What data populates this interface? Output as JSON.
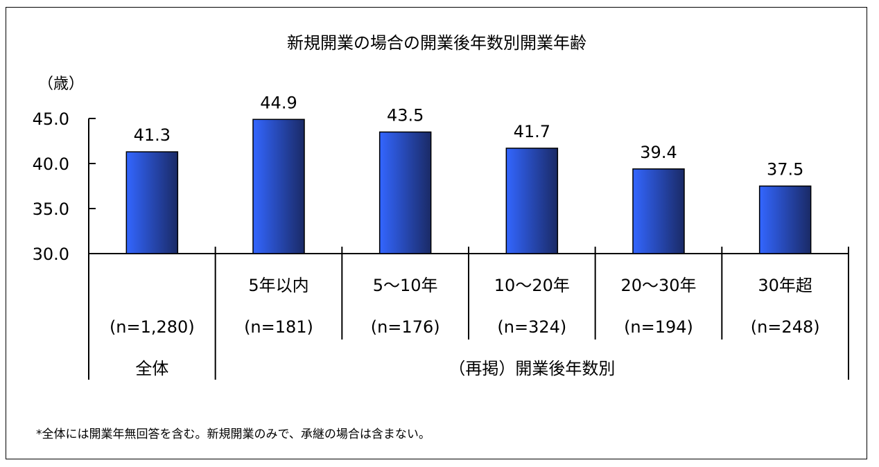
{
  "chart_data": {
    "type": "bar",
    "title": "新規開業の場合の開業後年数別開業年齢",
    "ylabel": "（歳）",
    "ylim": [
      30.0,
      45.0
    ],
    "yticks": [
      "30.0",
      "35.0",
      "40.0",
      "45.0"
    ],
    "categories": [
      "",
      "5年以内",
      "5～10年",
      "10～20年",
      "20～30年",
      "30年超"
    ],
    "sample_sizes": [
      "(n=1,280)",
      "(n=181)",
      "(n=176)",
      "(n=324)",
      "(n=194)",
      "(n=248)"
    ],
    "values": [
      41.3,
      44.9,
      43.5,
      41.7,
      39.4,
      37.5
    ],
    "value_labels": [
      "41.3",
      "44.9",
      "43.5",
      "41.7",
      "39.4",
      "37.5"
    ],
    "groups": [
      "全体",
      "（再掲）開業後年数別"
    ],
    "bar_color_light": "#3366ff",
    "bar_color_dark": "#1a2a66",
    "grid": false,
    "legend": "none"
  },
  "footnote": "*全体には開業年無回答を含む。新規開業のみで、承継の場合は含まない。"
}
